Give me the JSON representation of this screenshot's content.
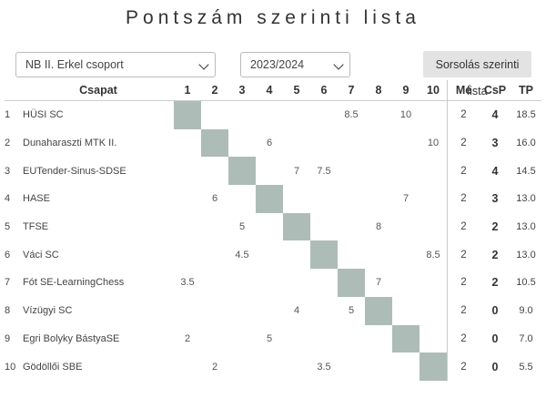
{
  "title": "Pontszám szerinti lista",
  "controls": {
    "group_select": "NB II. Erkel csoport",
    "season_select": "2023/2024",
    "draw_order_button": "Sorsolás szerinti lista"
  },
  "table": {
    "headers": {
      "team": "Csapat",
      "rounds": [
        "1",
        "2",
        "3",
        "4",
        "5",
        "6",
        "7",
        "8",
        "9",
        "10"
      ],
      "me": "Mé",
      "csp": "CsP",
      "tp": "TP"
    },
    "rows": [
      {
        "rank": "1",
        "team": "HÜSI SC",
        "results": [
          "",
          "",
          "",
          "",
          "",
          "",
          "8.5",
          "",
          "10",
          ""
        ],
        "me": "2",
        "csp": "4",
        "tp": "18.5"
      },
      {
        "rank": "2",
        "team": "Dunaharaszti MTK II.",
        "results": [
          "",
          "",
          "",
          "6",
          "",
          "",
          "",
          "",
          "",
          "10"
        ],
        "me": "2",
        "csp": "3",
        "tp": "16.0"
      },
      {
        "rank": "3",
        "team": "EUTender-Sinus-SDSE",
        "results": [
          "",
          "",
          "",
          "",
          "7",
          "7.5",
          "",
          "",
          "",
          ""
        ],
        "me": "2",
        "csp": "4",
        "tp": "14.5"
      },
      {
        "rank": "4",
        "team": "HASE",
        "results": [
          "",
          "6",
          "",
          "",
          "",
          "",
          "",
          "",
          "7",
          ""
        ],
        "me": "2",
        "csp": "3",
        "tp": "13.0"
      },
      {
        "rank": "5",
        "team": "TFSE",
        "results": [
          "",
          "",
          "5",
          "",
          "",
          "",
          "",
          "8",
          "",
          ""
        ],
        "me": "2",
        "csp": "2",
        "tp": "13.0"
      },
      {
        "rank": "6",
        "team": "Váci SC",
        "results": [
          "",
          "",
          "4.5",
          "",
          "",
          "",
          "",
          "",
          "",
          "8.5"
        ],
        "me": "2",
        "csp": "2",
        "tp": "13.0"
      },
      {
        "rank": "7",
        "team": "Fót SE-LearningChess",
        "results": [
          "3.5",
          "",
          "",
          "",
          "",
          "",
          "",
          "7",
          "",
          ""
        ],
        "me": "2",
        "csp": "2",
        "tp": "10.5"
      },
      {
        "rank": "8",
        "team": "Vízügyi SC",
        "results": [
          "",
          "",
          "",
          "",
          "4",
          "",
          "5",
          "",
          "",
          ""
        ],
        "me": "2",
        "csp": "0",
        "tp": "9.0"
      },
      {
        "rank": "9",
        "team": "Egri Bolyky BástyaSE",
        "results": [
          "2",
          "",
          "",
          "5",
          "",
          "",
          "",
          "",
          "",
          ""
        ],
        "me": "2",
        "csp": "0",
        "tp": "7.0"
      },
      {
        "rank": "10",
        "team": "Gödöllői SBE",
        "results": [
          "",
          "2",
          "",
          "",
          "",
          "3.5",
          "",
          "",
          "",
          ""
        ],
        "me": "2",
        "csp": "0",
        "tp": "5.5"
      }
    ]
  }
}
